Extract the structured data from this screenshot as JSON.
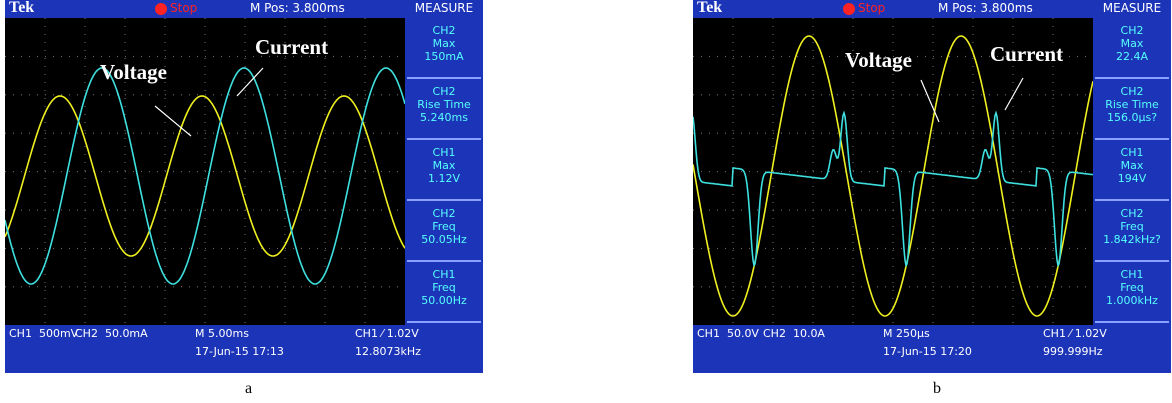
{
  "panels": [
    {
      "header": {
        "brand": "Tek",
        "status": "Stop",
        "position": "M Pos: 3.800ms",
        "menu": "MEASURE"
      },
      "measurements": [
        {
          "channel": "CH2",
          "label": "Max",
          "value": "150mA"
        },
        {
          "channel": "CH2",
          "label": "Rise Time",
          "value": "5.240ms"
        },
        {
          "channel": "CH1",
          "label": "Max",
          "value": "1.12V"
        },
        {
          "channel": "CH2",
          "label": "Freq",
          "value": "50.05Hz"
        },
        {
          "channel": "CH1",
          "label": "Freq",
          "value": "50.00Hz"
        }
      ],
      "footer": {
        "ch1": "CH1  500mV",
        "ch2": "CH2  50.0mA",
        "timebase": "M 5.00ms",
        "trigger": "CH1 ⁄ 1.02V",
        "timestamp": "17-Jun-15 17:13",
        "frequency": "12.8073kHz"
      },
      "annotations": {
        "voltage": "Voltage",
        "current": "Current"
      },
      "caption": "a"
    },
    {
      "header": {
        "brand": "Tek",
        "status": "Stop",
        "position": "M Pos: 3.800ms",
        "menu": "MEASURE"
      },
      "measurements": [
        {
          "channel": "CH2",
          "label": "Max",
          "value": "22.4A"
        },
        {
          "channel": "CH2",
          "label": "Rise Time",
          "value": "156.0µs?"
        },
        {
          "channel": "CH1",
          "label": "Max",
          "value": "194V"
        },
        {
          "channel": "CH2",
          "label": "Freq",
          "value": "1.842kHz?"
        },
        {
          "channel": "CH1",
          "label": "Freq",
          "value": "1.000kHz"
        }
      ],
      "footer": {
        "ch1": "CH1  50.0V",
        "ch2": "CH2  10.0A",
        "timebase": "M 250µs",
        "trigger": "CH1 ⁄ 1.02V",
        "timestamp": "17-Jun-15 17:20",
        "frequency": "999.999Hz"
      },
      "annotations": {
        "voltage": "Voltage",
        "current": "Current"
      },
      "caption": "b"
    }
  ]
}
